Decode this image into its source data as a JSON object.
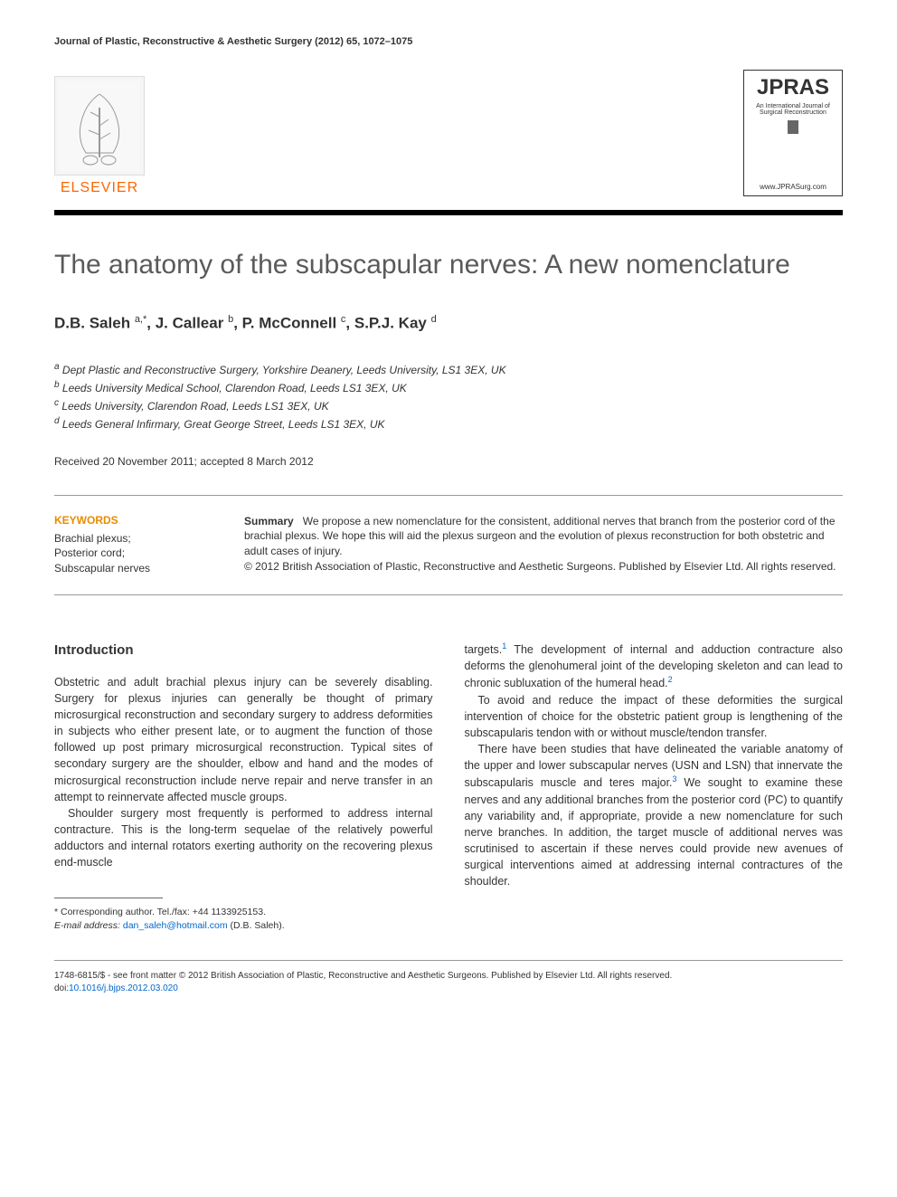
{
  "journal_header": "Journal of Plastic, Reconstructive & Aesthetic Surgery (2012) 65, 1072–1075",
  "publisher": {
    "name": "ELSEVIER",
    "color": "#ff6600"
  },
  "journal_logo": {
    "acronym": "JPRAS",
    "subtitle": "An International Journal of Surgical Reconstruction",
    "url": "www.JPRASurg.com"
  },
  "title": "The anatomy of the subscapular nerves: A new nomenclature",
  "authors_html": "D.B. Saleh <sup>a,*</sup>, J. Callear <sup>b</sup>, P. McConnell <sup>c</sup>, S.P.J. Kay <sup>d</sup>",
  "affiliations": [
    "a Dept Plastic and Reconstructive Surgery, Yorkshire Deanery, Leeds University, LS1 3EX, UK",
    "b Leeds University Medical School, Clarendon Road, Leeds LS1 3EX, UK",
    "c Leeds University, Clarendon Road, Leeds LS1 3EX, UK",
    "d Leeds General Infirmary, Great George Street, Leeds LS1 3EX, UK"
  ],
  "dates": "Received 20 November 2011; accepted 8 March 2012",
  "keywords": {
    "heading": "KEYWORDS",
    "items": "Brachial plexus;\nPosterior cord;\nSubscapular nerves"
  },
  "summary": {
    "label": "Summary",
    "text": "We propose a new nomenclature for the consistent, additional nerves that branch from the posterior cord of the brachial plexus. We hope this will aid the plexus surgeon and the evolution of plexus reconstruction for both obstetric and adult cases of injury.",
    "copyright": "© 2012 British Association of Plastic, Reconstructive and Aesthetic Surgeons. Published by Elsevier Ltd. All rights reserved."
  },
  "introduction": {
    "heading": "Introduction",
    "p1": "Obstetric and adult brachial plexus injury can be severely disabling. Surgery for plexus injuries can generally be thought of primary microsurgical reconstruction and secondary surgery to address deformities in subjects who either present late, or to augment the function of those followed up post primary microsurgical reconstruction. Typical sites of secondary surgery are the shoulder, elbow and hand and the modes of microsurgical reconstruction include nerve repair and nerve transfer in an attempt to reinnervate affected muscle groups.",
    "p2": "Shoulder surgery most frequently is performed to address internal contracture. This is the long-term sequelae of the relatively powerful adductors and internal rotators exerting authority on the recovering plexus end-muscle",
    "col2_p1_pre": "targets.",
    "col2_p1_post": " The development of internal and adduction contracture also deforms the glenohumeral joint of the developing skeleton and can lead to chronic subluxation of the humeral head.",
    "col2_p2": "To avoid and reduce the impact of these deformities the surgical intervention of choice for the obstetric patient group is lengthening of the subscapularis tendon with or without muscle/tendon transfer.",
    "col2_p3_pre": "There have been studies that have delineated the variable anatomy of the upper and lower subscapular nerves (USN and LSN) that innervate the subscapularis muscle and teres major.",
    "col2_p3_post": " We sought to examine these nerves and any additional branches from the posterior cord (PC) to quantify any variability and, if appropriate, provide a new nomenclature for such nerve branches. In addition, the target muscle of additional nerves was scrutinised to ascertain if these nerves could provide new avenues of surgical interventions aimed at addressing internal contractures of the shoulder."
  },
  "footnotes": {
    "corresponding": "* Corresponding author. Tel./fax: +44 1133925153.",
    "email_label": "E-mail address:",
    "email": "dan_saleh@hotmail.com",
    "email_author": "(D.B. Saleh)."
  },
  "footer": {
    "issn": "1748-6815/$ - see front matter © 2012 British Association of Plastic, Reconstructive and Aesthetic Surgeons. Published by Elsevier Ltd. All rights reserved.",
    "doi_label": "doi:",
    "doi": "10.1016/j.bjps.2012.03.020"
  },
  "colors": {
    "title_gray": "#5a5a5a",
    "keyword_orange": "#e88c00",
    "link_blue": "#0066cc",
    "elsevier_orange": "#ff6600"
  },
  "typography": {
    "body_fontsize": 12.5,
    "title_fontsize": 30,
    "author_fontsize": 17,
    "footnote_fontsize": 10.5
  }
}
